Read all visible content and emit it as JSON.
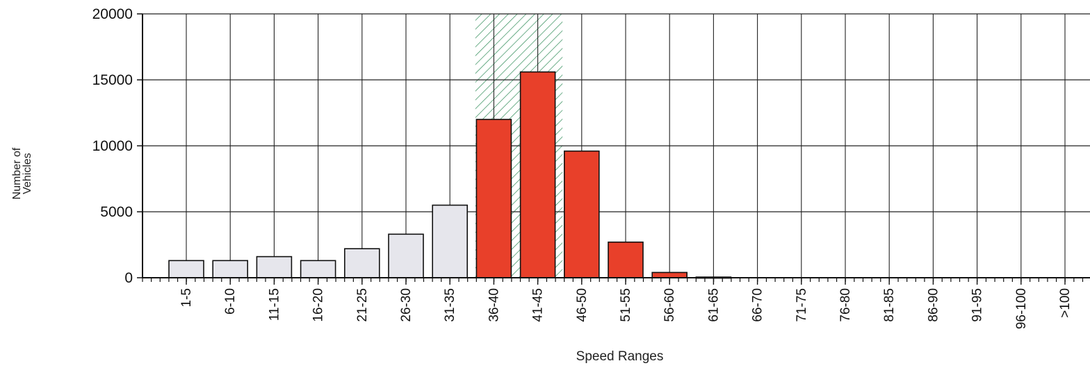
{
  "chart_data": {
    "type": "bar",
    "title": "",
    "xlabel": "Speed Ranges",
    "ylabel_lines": [
      "Number of",
      "Vehicles"
    ],
    "ylim": [
      0,
      20000
    ],
    "yticks": [
      0,
      5000,
      10000,
      15000,
      20000
    ],
    "categories": [
      "1-5",
      "6-10",
      "11-15",
      "16-20",
      "21-25",
      "26-30",
      "31-35",
      "36-40",
      "41-45",
      "46-50",
      "51-55",
      "56-60",
      "61-65",
      "66-70",
      "71-75",
      "76-80",
      "81-85",
      "86-90",
      "91-95",
      "96-100",
      ">100"
    ],
    "values": [
      1300,
      1300,
      1600,
      1300,
      2200,
      3300,
      5500,
      12000,
      15600,
      9600,
      2700,
      400,
      50,
      0,
      0,
      0,
      0,
      0,
      0,
      0,
      0
    ],
    "highlighted_range": [
      "36-40",
      "46-50"
    ],
    "shaded_pace_range": [
      "36-40",
      "41-45"
    ],
    "grid": true,
    "colors": {
      "normal_bar": "#e6e6ec",
      "highlight_bar": "#e8402a",
      "hatch": "#2e8b57",
      "axis": "#111111"
    }
  }
}
